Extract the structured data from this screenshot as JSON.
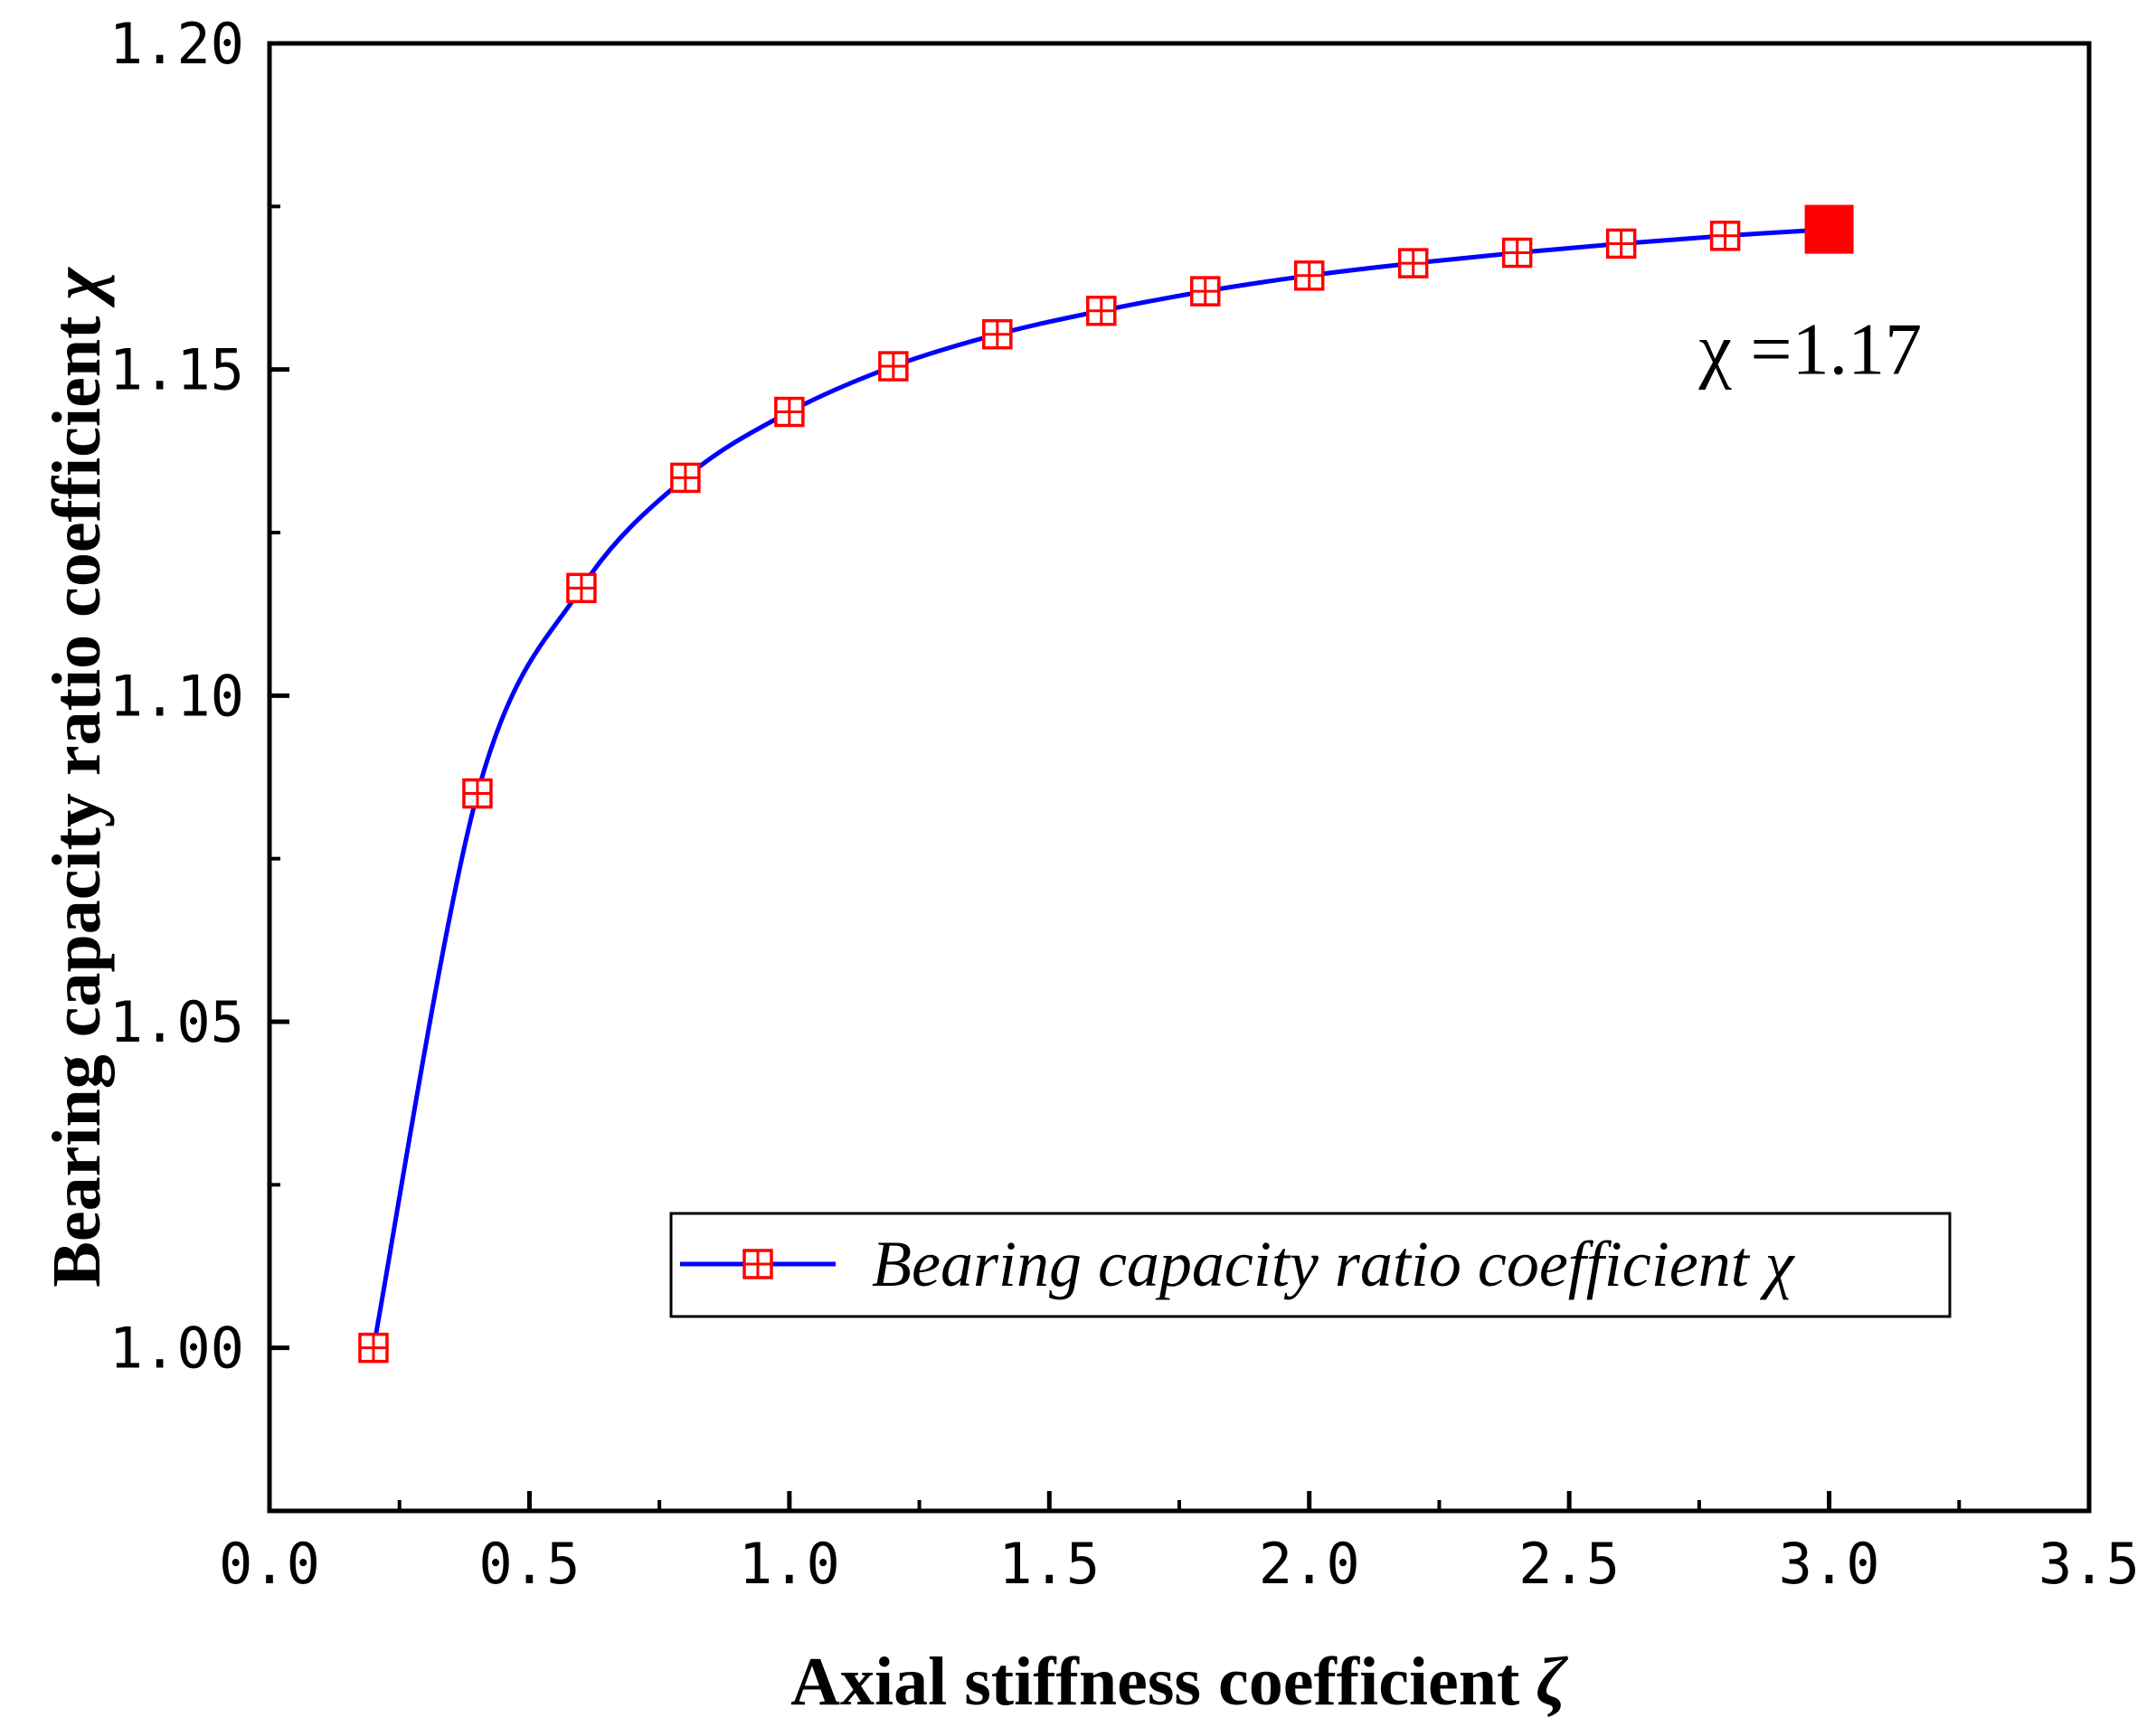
{
  "chart_data": {
    "type": "line",
    "title": "",
    "xlabel": "Axial stiffness coefficient",
    "xlabel_symbol": "ζ",
    "ylabel": "Bearing capacity ratio coefficient",
    "ylabel_symbol": "χ",
    "xlim": [
      0.0,
      3.5
    ],
    "ylim": [
      0.975,
      1.2
    ],
    "x_ticks": [
      0.0,
      0.5,
      1.0,
      1.5,
      2.0,
      2.5,
      3.0,
      3.5
    ],
    "x_tick_labels": [
      "0.0",
      "0.5",
      "1.0",
      "1.5",
      "2.0",
      "2.5",
      "3.0",
      "3.5"
    ],
    "y_ticks": [
      1.0,
      1.05,
      1.1,
      1.15,
      1.2
    ],
    "y_tick_labels": [
      "1.00",
      "1.05",
      "1.10",
      "1.15",
      "1.20"
    ],
    "grid": false,
    "legend_position": "lower-right",
    "series": [
      {
        "name": "Bearing capacity ratio coefficient χ",
        "line_color": "#0000ff",
        "marker_color": "#ff0000",
        "marker": "boxed-cross square (open)",
        "x": [
          0.2,
          0.4,
          0.6,
          0.8,
          1.0,
          1.2,
          1.4,
          1.6,
          1.8,
          2.0,
          2.2,
          2.4,
          2.6,
          2.8,
          3.0
        ],
        "y": [
          1.0,
          1.085,
          1.1165,
          1.1334,
          1.1435,
          1.1505,
          1.1554,
          1.159,
          1.162,
          1.1644,
          1.1663,
          1.1679,
          1.1693,
          1.1705,
          1.1715
        ]
      }
    ],
    "highlight_point": {
      "x": 3.0,
      "y": 1.1715,
      "marker": "filled square",
      "color": "#ff0000"
    },
    "annotations": [
      {
        "text": "χ =1.17",
        "x": 2.95,
        "y": 1.1535
      }
    ]
  }
}
